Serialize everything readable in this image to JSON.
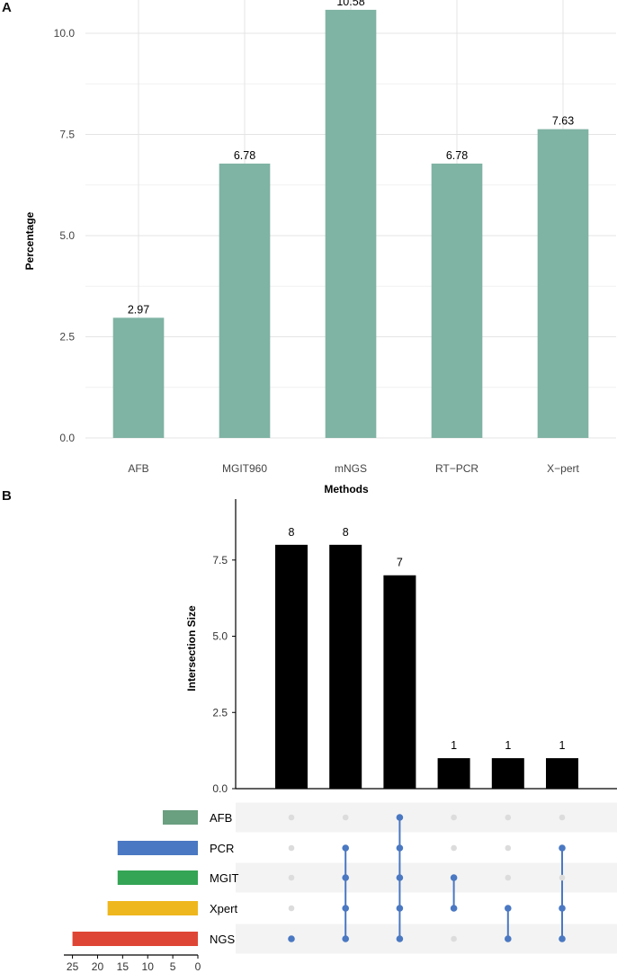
{
  "panels": {
    "a_label": "A",
    "b_label": "B"
  },
  "chart_data": [
    {
      "type": "bar",
      "title": "",
      "xlabel": "Methods",
      "ylabel": "Percentage",
      "categories": [
        "AFB",
        "MGIT960",
        "mNGS",
        "RT−PCR",
        "X−pert"
      ],
      "values": [
        2.97,
        6.78,
        10.58,
        6.78,
        7.63
      ],
      "value_labels": [
        "2.97",
        "6.78",
        "10.58",
        "6.78",
        "7.63"
      ],
      "yticks": [
        0.0,
        2.5,
        5.0,
        7.5,
        10.0
      ],
      "ytick_labels": [
        "0.0",
        "2.5",
        "5.0",
        "7.5",
        "10.0"
      ],
      "ylim": [
        0,
        10.8
      ],
      "grid": true,
      "colors": {
        "bar": "#7fb3a3"
      }
    },
    {
      "type": "upset",
      "ylabel": "Intersection Size",
      "intersection_values": [
        8,
        8,
        7,
        1,
        1,
        1
      ],
      "intersection_labels": [
        "8",
        "8",
        "7",
        "1",
        "1",
        "1"
      ],
      "yticks": [
        0.0,
        2.5,
        5.0,
        7.5
      ],
      "ytick_labels": [
        "0.0",
        "2.5",
        "5.0",
        "7.5"
      ],
      "ylim": [
        0,
        9.5
      ],
      "sets": [
        "AFB",
        "PCR",
        "MGIT",
        "Xpert",
        "NGS"
      ],
      "set_sizes": [
        7,
        16,
        16,
        18,
        25
      ],
      "set_colors": [
        "#6a9f7f",
        "#4a78c2",
        "#34a455",
        "#efb71e",
        "#df4534"
      ],
      "set_size_ticks": [
        25,
        20,
        15,
        10,
        5,
        0
      ],
      "set_size_tick_labels": [
        "25",
        "20",
        "15",
        "10",
        "5",
        "0"
      ],
      "set_size_max": 26,
      "matrix": [
        [
          "NGS"
        ],
        [
          "PCR",
          "MGIT",
          "Xpert",
          "NGS"
        ],
        [
          "AFB",
          "PCR",
          "MGIT",
          "Xpert",
          "NGS"
        ],
        [
          "MGIT",
          "Xpert"
        ],
        [
          "Xpert",
          "NGS"
        ],
        [
          "PCR",
          "Xpert",
          "NGS"
        ]
      ],
      "colors": {
        "bar": "#000000",
        "dot_on": "#4a78c2",
        "dot_off": "#dcdcdc",
        "stripe": "#f3f3f3"
      }
    }
  ]
}
